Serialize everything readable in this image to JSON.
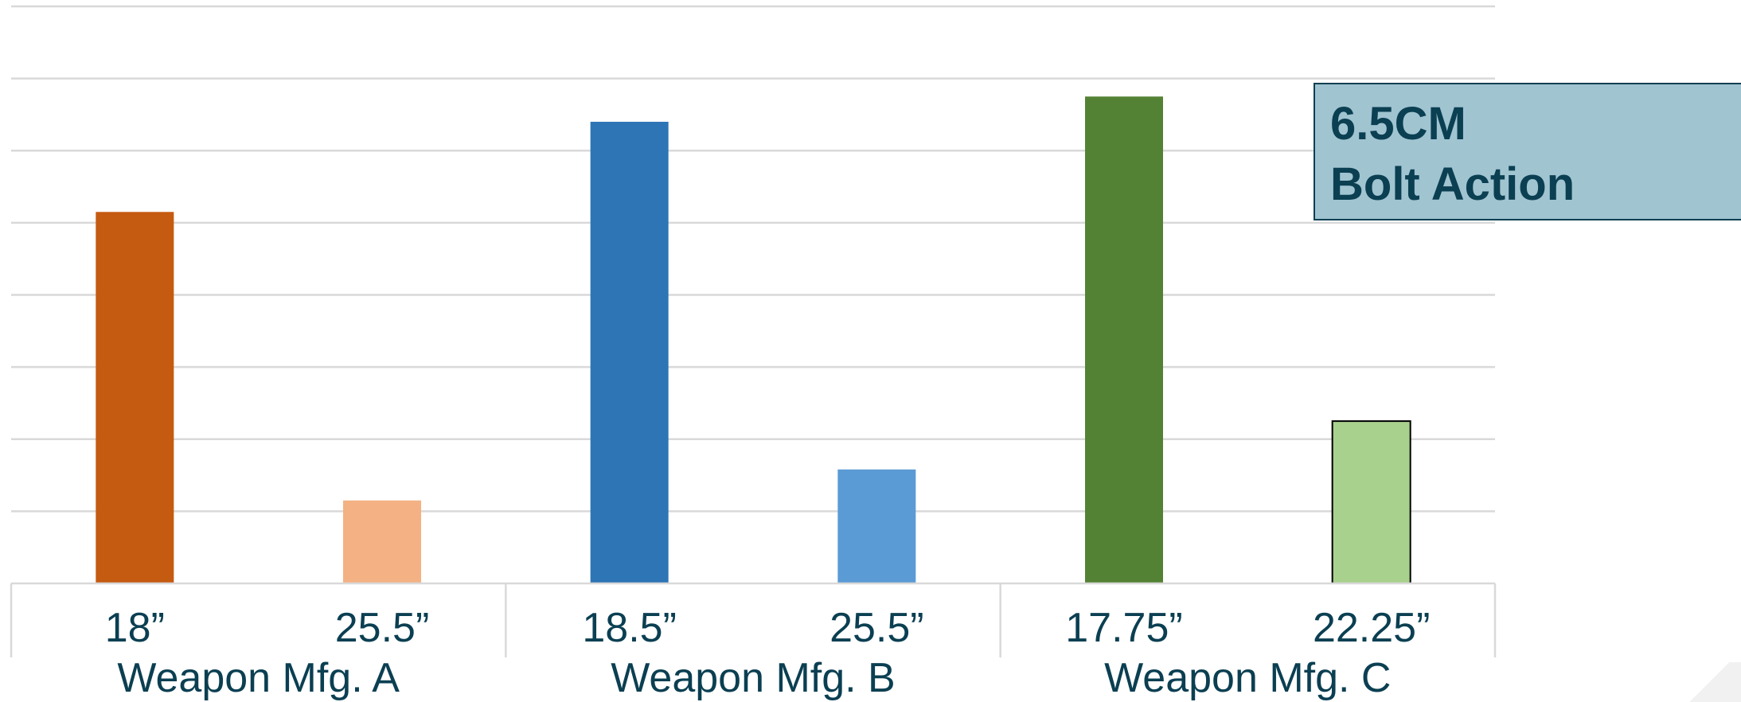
{
  "chart_data": {
    "type": "bar",
    "ylim": [
      0,
      8
    ],
    "grid": true,
    "bars": [
      {
        "label": "18”",
        "group": "Weapon Mfg. A",
        "value": 5.15,
        "color": "#c55a11"
      },
      {
        "label": "25.5”",
        "group": "Weapon Mfg. A",
        "value": 1.15,
        "color": "#f4b183"
      },
      {
        "label": "18.5”",
        "group": "Weapon Mfg. B",
        "value": 6.4,
        "color": "#2e75b6"
      },
      {
        "label": "25.5”",
        "group": "Weapon Mfg. B",
        "value": 1.58,
        "color": "#5b9bd5"
      },
      {
        "label": "17.75”",
        "group": "Weapon Mfg. C",
        "value": 6.75,
        "color": "#548235"
      },
      {
        "label": "22.25”",
        "group": "Weapon Mfg. C",
        "value": 2.25,
        "color": "#a9d18e",
        "outlined": true
      }
    ],
    "groups": [
      "Weapon Mfg. A",
      "Weapon Mfg. B",
      "Weapon Mfg. C"
    ]
  },
  "callout": {
    "line1": "6.5CM",
    "line2": "Bolt Action"
  },
  "colors": {
    "text": "#0b3f52",
    "grid": "#d9d9d9",
    "callout_bg": "#a1c4d1"
  }
}
